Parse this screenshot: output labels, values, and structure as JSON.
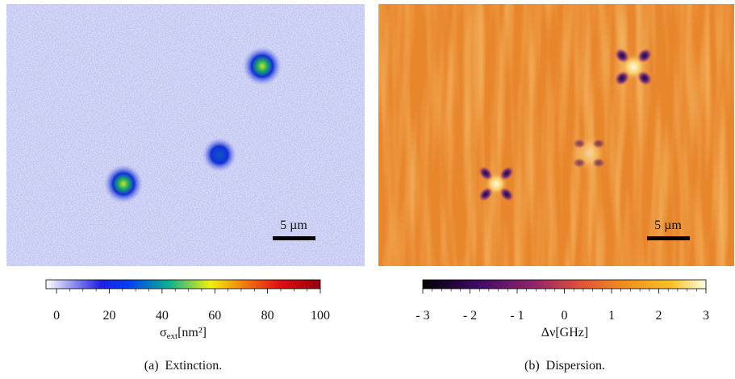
{
  "panels": [
    {
      "scale_bar": "5 µm",
      "colorbar": {
        "range": [
          -4,
          100
        ],
        "ticks": [
          0,
          20,
          40,
          60,
          80,
          100
        ],
        "minor_ticks": [
          5,
          10,
          15,
          25,
          30,
          35,
          45,
          50,
          55,
          65,
          70,
          75,
          85,
          90,
          95
        ],
        "label": {
          "symbol": "σ",
          "subscript": "ext",
          "unit": "[nm²]"
        }
      },
      "caption": "(a)  Extinction."
    },
    {
      "scale_bar": "5 µm",
      "colorbar": {
        "range": [
          -3,
          3
        ],
        "ticks": [
          {
            "value": -3,
            "label": "- 3"
          },
          {
            "value": -2,
            "label": "- 2"
          },
          {
            "value": -1,
            "label": "- 1"
          },
          0,
          1,
          2,
          3
        ],
        "minor_ticks": [
          -2.8,
          -2.6,
          -2.4,
          -2.2,
          -1.8,
          -1.6,
          -1.4,
          -1.2,
          -0.8,
          -0.6,
          -0.4,
          -0.2,
          0.2,
          0.4,
          0.6,
          0.8,
          1.2,
          1.4,
          1.6,
          1.8,
          2.2,
          2.4,
          2.6,
          2.8
        ],
        "label": {
          "symbol": "Δν",
          "unit": "[GHz]"
        }
      },
      "caption": "(b)  Dispersion."
    }
  ]
}
